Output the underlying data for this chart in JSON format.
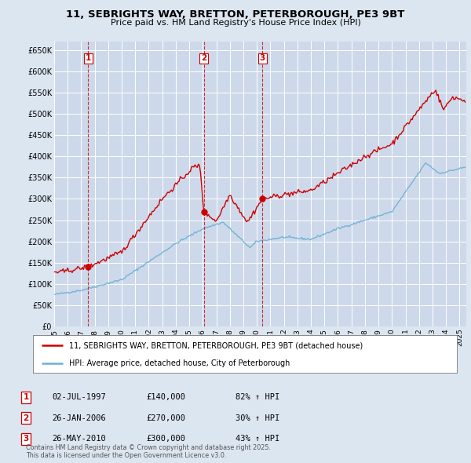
{
  "title_line1": "11, SEBRIGHTS WAY, BRETTON, PETERBOROUGH, PE3 9BT",
  "title_line2": "Price paid vs. HM Land Registry's House Price Index (HPI)",
  "ylim": [
    0,
    670000
  ],
  "yticks": [
    0,
    50000,
    100000,
    150000,
    200000,
    250000,
    300000,
    350000,
    400000,
    450000,
    500000,
    550000,
    600000,
    650000
  ],
  "ytick_labels": [
    "£0",
    "£50K",
    "£100K",
    "£150K",
    "£200K",
    "£250K",
    "£300K",
    "£350K",
    "£400K",
    "£450K",
    "£500K",
    "£550K",
    "£600K",
    "£650K"
  ],
  "xlim_start": 1995.0,
  "xlim_end": 2025.5,
  "background_color": "#dce6f1",
  "plot_bg_color": "#cdd9ea",
  "grid_color": "#ffffff",
  "hpi_line_color": "#6baed6",
  "price_line_color": "#cc0000",
  "sale_marker_color": "#cc0000",
  "dashed_line_color": "#cc0000",
  "legend_label_price": "11, SEBRIGHTS WAY, BRETTON, PETERBOROUGH, PE3 9BT (detached house)",
  "legend_label_hpi": "HPI: Average price, detached house, City of Peterborough",
  "sales": [
    {
      "label": "1",
      "date_x": 1997.5,
      "price": 140000,
      "date_str": "02-JUL-1997",
      "amount_str": "£140,000",
      "pct_str": "82% ↑ HPI"
    },
    {
      "label": "2",
      "date_x": 2006.07,
      "price": 270000,
      "date_str": "26-JAN-2006",
      "amount_str": "£270,000",
      "pct_str": "30% ↑ HPI"
    },
    {
      "label": "3",
      "date_x": 2010.4,
      "price": 300000,
      "date_str": "26-MAY-2010",
      "amount_str": "£300,000",
      "pct_str": "43% ↑ HPI"
    }
  ],
  "footnote": "Contains HM Land Registry data © Crown copyright and database right 2025.\nThis data is licensed under the Open Government Licence v3.0.",
  "xtick_years": [
    1995,
    1996,
    1997,
    1998,
    1999,
    2000,
    2001,
    2002,
    2003,
    2004,
    2005,
    2006,
    2007,
    2008,
    2009,
    2010,
    2011,
    2012,
    2013,
    2014,
    2015,
    2016,
    2017,
    2018,
    2019,
    2020,
    2021,
    2022,
    2023,
    2024,
    2025
  ]
}
